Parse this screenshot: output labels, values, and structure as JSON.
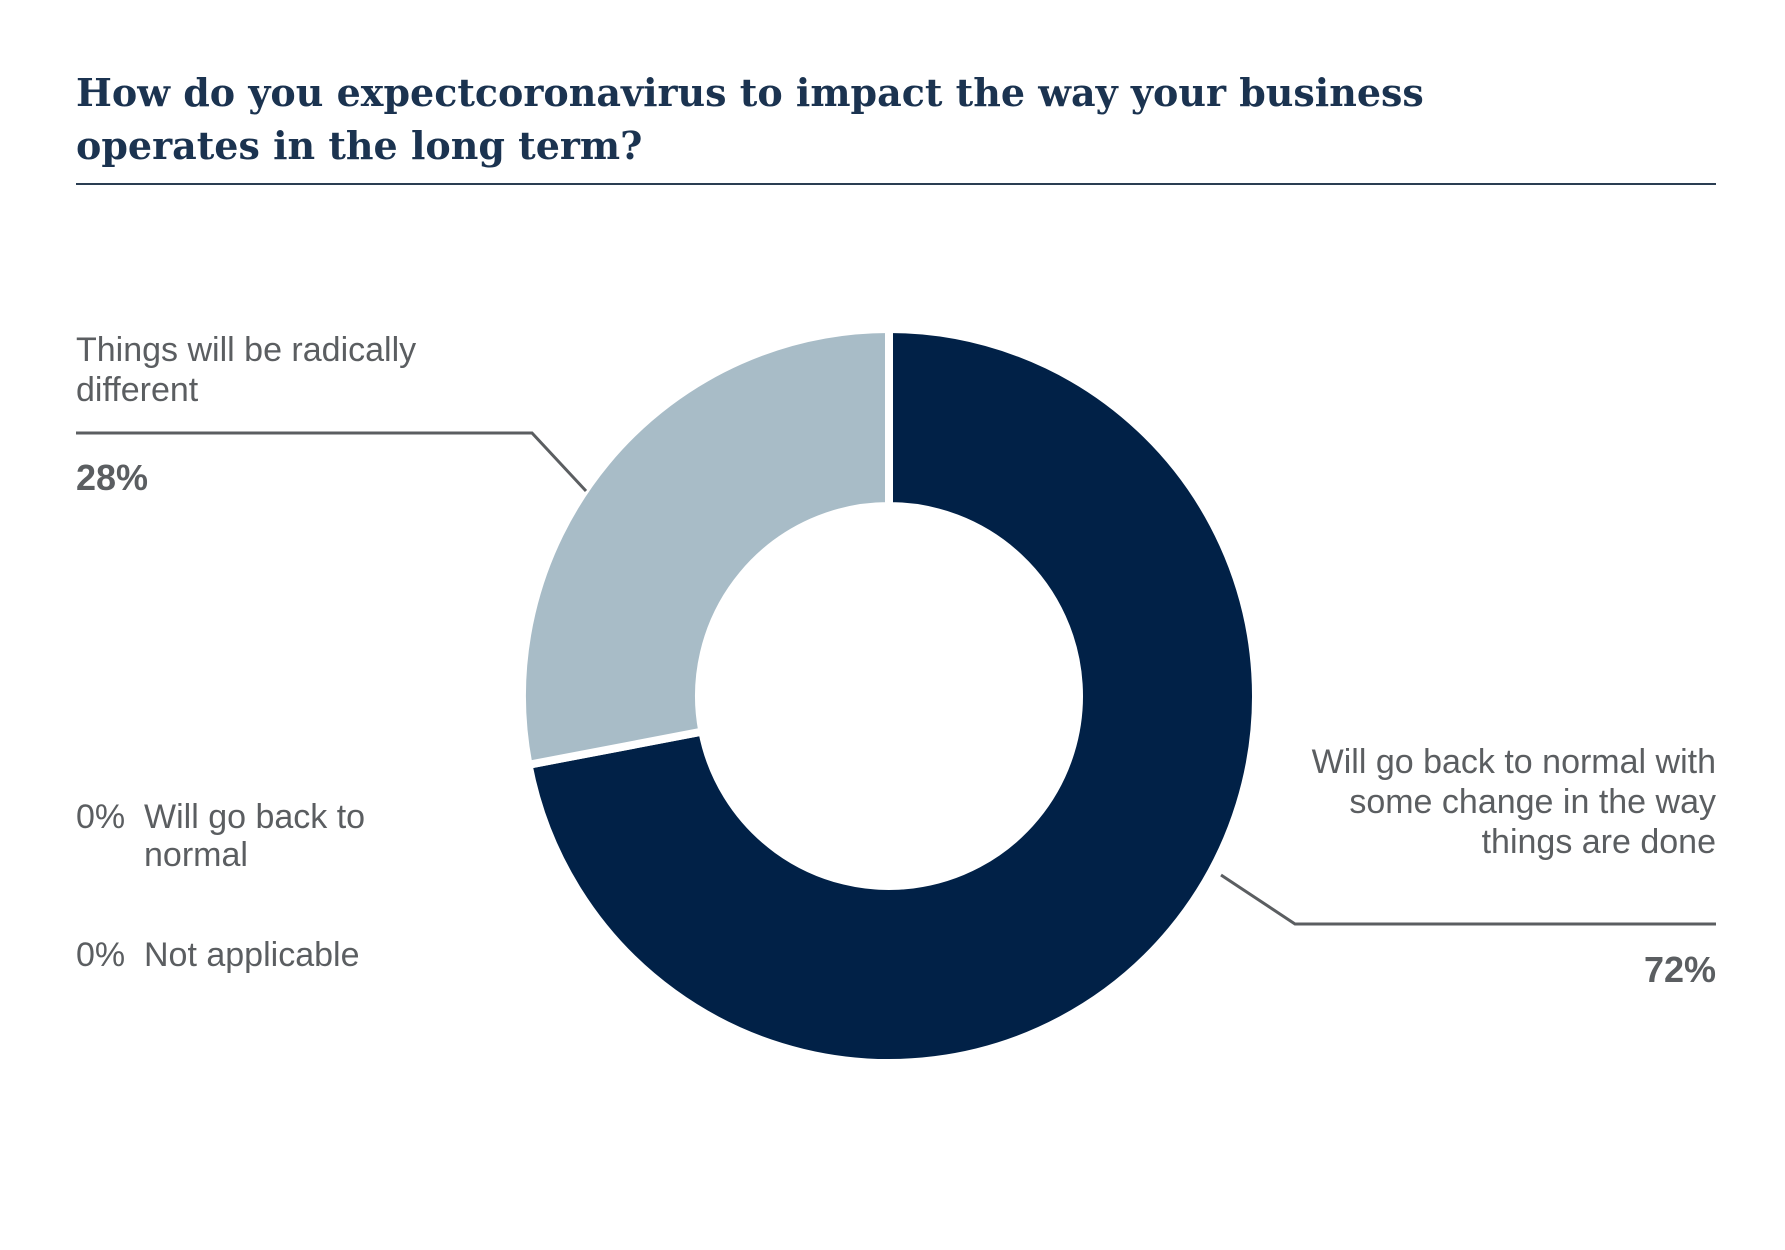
{
  "chart_data": {
    "type": "pie",
    "style": "donut",
    "title": "How do you expectcoronavirus to impact the way your business operates in the long term?",
    "slices": [
      {
        "label": "Will go back to normal with some change in the way things are done",
        "value": 72,
        "display": "72%",
        "color": "#012147"
      },
      {
        "label": "Things will be radically different",
        "value": 28,
        "display": "28%",
        "color": "#a8bcc7"
      },
      {
        "label": "Will go back to normal",
        "value": 0,
        "display": "0%",
        "color": "#ffffff"
      },
      {
        "label": "Not applicable",
        "value": 0,
        "display": "0%",
        "color": "#ffffff"
      }
    ],
    "leader_color": "#5b5e61"
  }
}
